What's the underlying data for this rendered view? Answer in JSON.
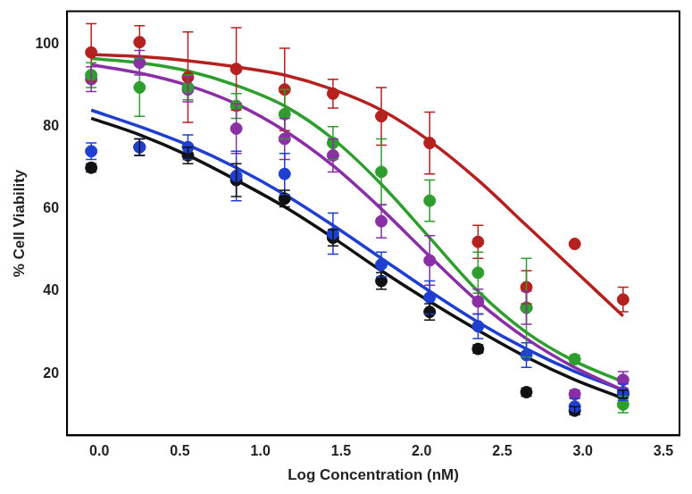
{
  "chart_data": {
    "type": "scatter",
    "x_label": "Log Concentration (nM)",
    "y_label": "% Cell Viability",
    "x": [
      -0.05,
      0.25,
      0.55,
      0.85,
      1.15,
      1.45,
      1.75,
      2.05,
      2.35,
      2.65,
      2.95,
      3.25
    ],
    "xlim": [
      -0.2,
      3.6
    ],
    "xticks": [
      {
        "value": 0,
        "label": "0.0"
      },
      0.5,
      {
        "value": 1,
        "label": "1.0"
      },
      1.5,
      {
        "value": 2,
        "label": "2.0"
      },
      2.5,
      {
        "value": 3,
        "label": "3.0"
      },
      3.5
    ],
    "ylim": [
      5,
      108
    ],
    "yticks": [
      20,
      40,
      60,
      80,
      100
    ],
    "grid": false,
    "marker": "circle",
    "series": [
      {
        "color": "#b5211f",
        "values": [
          98,
          100.5,
          92,
          94,
          89,
          88,
          82.5,
          76,
          52,
          41,
          51.5,
          38
        ],
        "errors": [
          7,
          4,
          11,
          10,
          10,
          3.5,
          7,
          7.5,
          4,
          4,
          0,
          3
        ],
        "fit": [
          97.5,
          97,
          96,
          94.5,
          92.5,
          89,
          84,
          76.5,
          67,
          56,
          45,
          34
        ]
      },
      {
        "color": "#2e9e2e",
        "values": [
          92.5,
          89.5,
          89.5,
          85,
          83,
          76,
          69,
          62,
          44.5,
          36,
          23.5,
          12.5
        ],
        "errors": [
          3,
          7,
          3,
          3,
          6,
          4,
          8,
          5,
          5,
          12,
          1,
          2
        ],
        "fit": [
          96.5,
          95.5,
          93.5,
          90,
          85,
          77,
          66,
          53,
          40,
          30,
          23,
          18
        ]
      },
      {
        "color": "#8a2fa6",
        "values": [
          91.5,
          95.5,
          89,
          79.5,
          77,
          73,
          57,
          47.5,
          37.5,
          36,
          15,
          18.5
        ],
        "errors": [
          3,
          3,
          3,
          6,
          5,
          4,
          4,
          6,
          3,
          4,
          1,
          2
        ],
        "fit": [
          95,
          93,
          90,
          85.5,
          79,
          70.5,
          60,
          48.5,
          37.5,
          28.5,
          21.5,
          16
        ]
      },
      {
        "color": "#1f3fd0",
        "values": [
          74,
          75,
          75,
          68,
          68.5,
          54,
          46.5,
          38.5,
          31.5,
          24.5,
          12,
          15.5
        ],
        "errors": [
          2,
          2,
          3,
          6,
          5,
          5,
          3,
          4,
          3,
          3,
          2,
          2
        ],
        "fit": [
          84,
          80,
          75.5,
          70,
          63.5,
          56,
          48,
          40,
          32.5,
          26,
          20.5,
          16
        ]
      },
      {
        "color": "#111111",
        "values": [
          70,
          75,
          73,
          67,
          62.5,
          53,
          42.5,
          35,
          26,
          15.5,
          11,
          15
        ],
        "errors": [
          1,
          2,
          2,
          4,
          2,
          2,
          2,
          2,
          1,
          1,
          1,
          1
        ],
        "fit": [
          82,
          78,
          73,
          67,
          60.5,
          53,
          45,
          37.5,
          30.5,
          24,
          18.5,
          14
        ]
      }
    ]
  }
}
